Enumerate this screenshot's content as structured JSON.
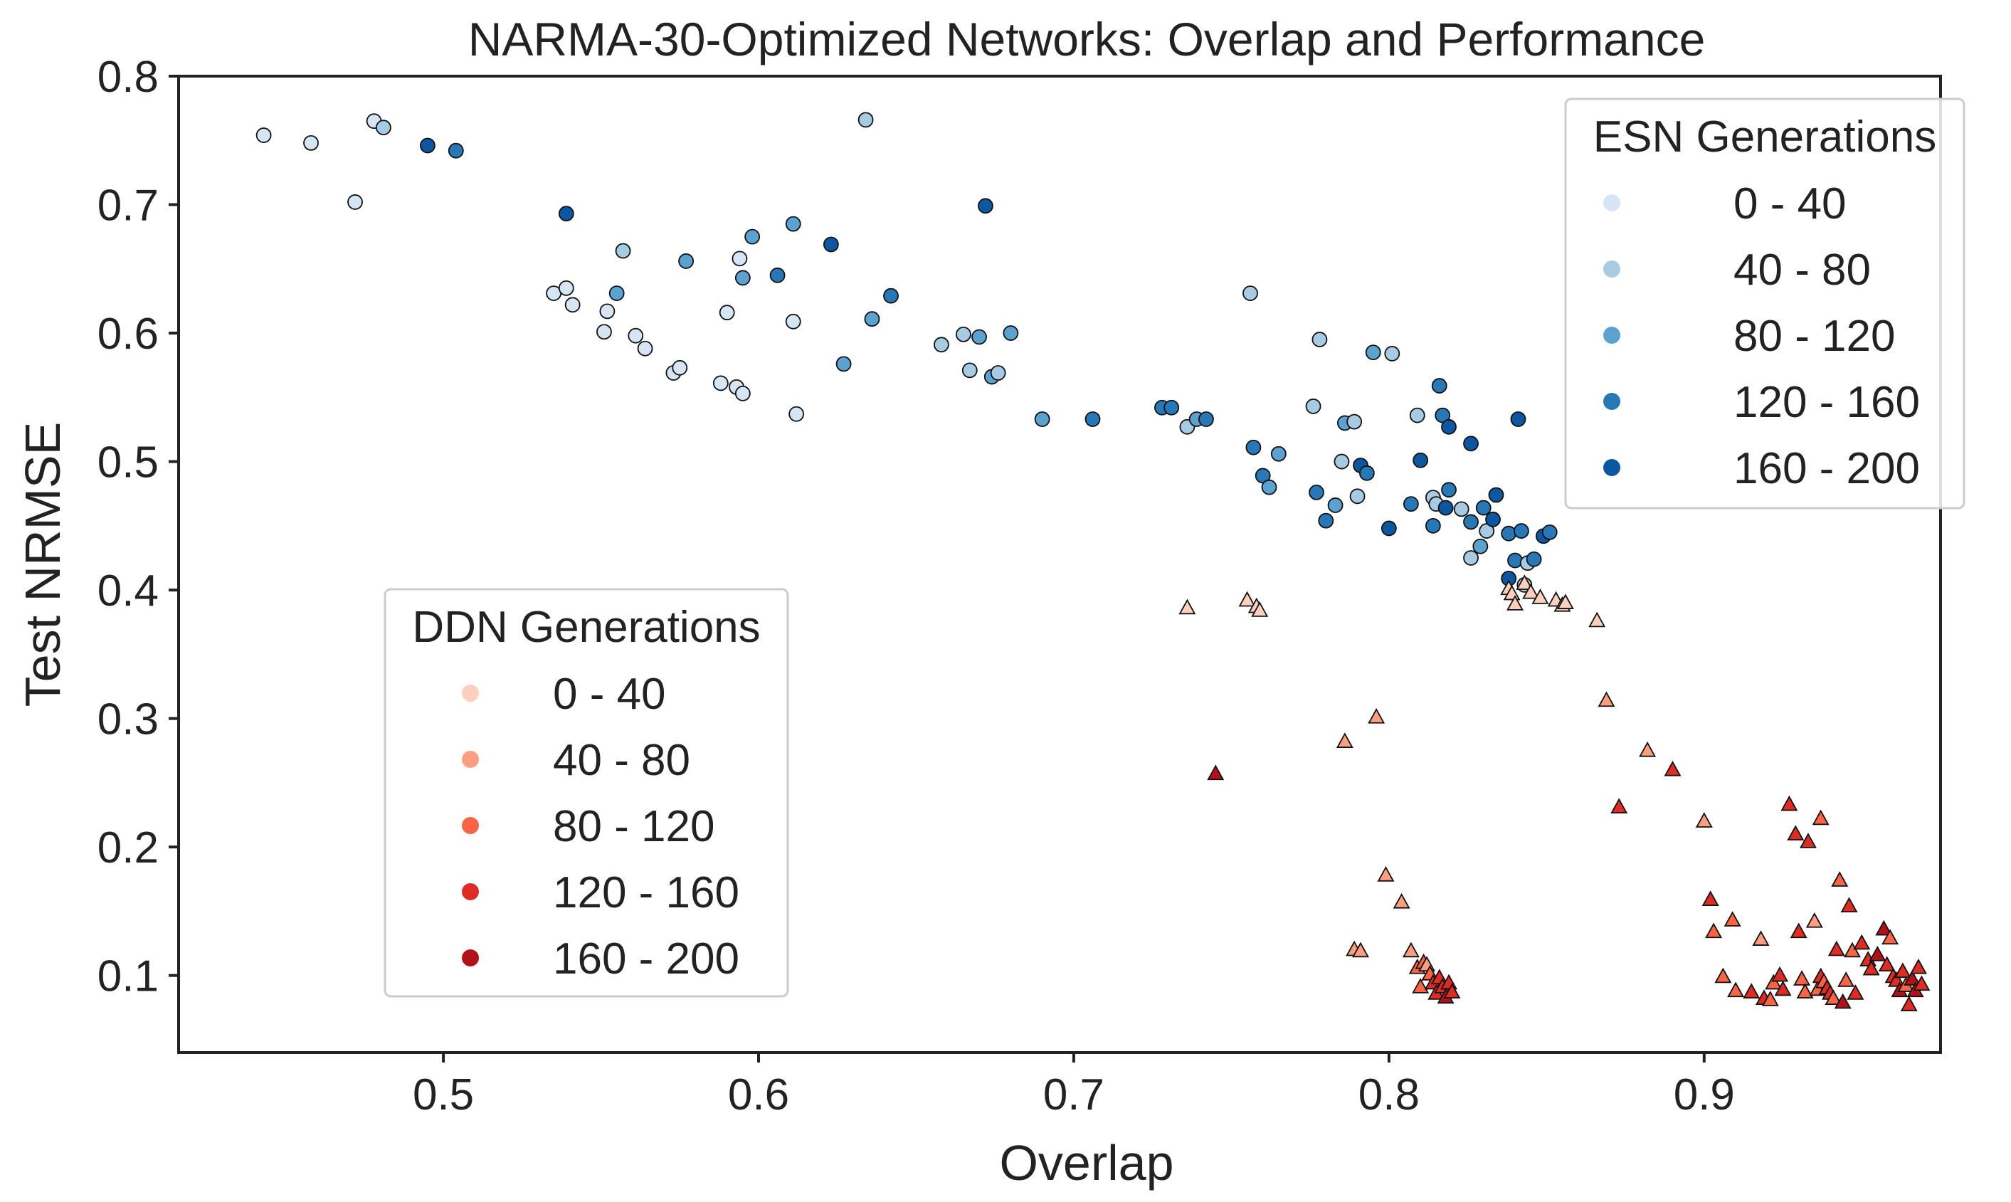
{
  "chart_data": {
    "type": "scatter",
    "title": "NARMA-30-Optimized Networks: Overlap and Performance",
    "xlabel": "Overlap",
    "ylabel": "Test NRMSE",
    "xlim": [
      0.416,
      0.975
    ],
    "ylim": [
      0.04,
      0.8
    ],
    "xticks": [
      0.5,
      0.6,
      0.7,
      0.8,
      0.9
    ],
    "xtick_labels": [
      "0.5",
      "0.6",
      "0.7",
      "0.8",
      "0.9"
    ],
    "yticks": [
      0.1,
      0.2,
      0.3,
      0.4,
      0.5,
      0.6,
      0.7,
      0.8
    ],
    "ytick_labels": [
      "0.1",
      "0.2",
      "0.3",
      "0.4",
      "0.5",
      "0.6",
      "0.7",
      "0.8"
    ],
    "grid": false,
    "legends": [
      {
        "title": "ESN Generations",
        "placement": "top-right",
        "marker": "circle",
        "labels": [
          "0 - 40",
          "40 - 80",
          "80 - 120",
          "120 - 160",
          "160 - 200"
        ],
        "colors": [
          "#d5e5f4",
          "#a6cbe3",
          "#5ba2d1",
          "#2878b8",
          "#0d57a0"
        ]
      },
      {
        "title": "DDN Generations",
        "placement": "lower-left",
        "marker": "triangle",
        "labels": [
          "0 - 40",
          "40 - 80",
          "80 - 120",
          "120 - 160",
          "160 - 200"
        ],
        "colors": [
          "#fdd0bd",
          "#fc9f80",
          "#f86446",
          "#dc2c24",
          "#b01217"
        ]
      }
    ],
    "series": [
      {
        "name": "ESN",
        "marker": "circle",
        "points": [
          [
            0.443,
            0.754,
            0
          ],
          [
            0.458,
            0.748,
            0
          ],
          [
            0.472,
            0.702,
            0
          ],
          [
            0.478,
            0.765,
            0
          ],
          [
            0.481,
            0.76,
            1
          ],
          [
            0.495,
            0.746,
            4
          ],
          [
            0.504,
            0.742,
            3
          ],
          [
            0.539,
            0.693,
            4
          ],
          [
            0.535,
            0.631,
            0
          ],
          [
            0.539,
            0.635,
            0
          ],
          [
            0.541,
            0.622,
            0
          ],
          [
            0.551,
            0.601,
            0
          ],
          [
            0.552,
            0.617,
            0
          ],
          [
            0.555,
            0.631,
            2
          ],
          [
            0.557,
            0.664,
            1
          ],
          [
            0.561,
            0.598,
            0
          ],
          [
            0.564,
            0.588,
            0
          ],
          [
            0.573,
            0.569,
            0
          ],
          [
            0.575,
            0.573,
            0
          ],
          [
            0.577,
            0.656,
            2
          ],
          [
            0.588,
            0.561,
            0
          ],
          [
            0.59,
            0.616,
            0
          ],
          [
            0.593,
            0.558,
            0
          ],
          [
            0.594,
            0.658,
            0
          ],
          [
            0.595,
            0.553,
            0
          ],
          [
            0.595,
            0.643,
            2
          ],
          [
            0.598,
            0.675,
            2
          ],
          [
            0.606,
            0.645,
            3
          ],
          [
            0.611,
            0.609,
            0
          ],
          [
            0.611,
            0.685,
            2
          ],
          [
            0.612,
            0.537,
            0
          ],
          [
            0.623,
            0.669,
            4
          ],
          [
            0.627,
            0.576,
            2
          ],
          [
            0.634,
            0.766,
            1
          ],
          [
            0.636,
            0.611,
            2
          ],
          [
            0.642,
            0.629,
            3
          ],
          [
            0.658,
            0.591,
            1
          ],
          [
            0.665,
            0.599,
            1
          ],
          [
            0.667,
            0.571,
            1
          ],
          [
            0.67,
            0.597,
            2
          ],
          [
            0.672,
            0.699,
            4
          ],
          [
            0.674,
            0.566,
            2
          ],
          [
            0.676,
            0.569,
            1
          ],
          [
            0.68,
            0.6,
            2
          ],
          [
            0.69,
            0.533,
            2
          ],
          [
            0.706,
            0.533,
            3
          ],
          [
            0.728,
            0.542,
            3
          ],
          [
            0.731,
            0.542,
            3
          ],
          [
            0.736,
            0.527,
            1
          ],
          [
            0.739,
            0.533,
            2
          ],
          [
            0.742,
            0.533,
            3
          ],
          [
            0.756,
            0.631,
            1
          ],
          [
            0.757,
            0.511,
            3
          ],
          [
            0.76,
            0.489,
            3
          ],
          [
            0.762,
            0.48,
            2
          ],
          [
            0.765,
            0.506,
            2
          ],
          [
            0.776,
            0.543,
            1
          ],
          [
            0.777,
            0.476,
            3
          ],
          [
            0.778,
            0.595,
            1
          ],
          [
            0.78,
            0.454,
            3
          ],
          [
            0.783,
            0.466,
            2
          ],
          [
            0.785,
            0.5,
            1
          ],
          [
            0.786,
            0.53,
            2
          ],
          [
            0.789,
            0.531,
            1
          ],
          [
            0.79,
            0.473,
            1
          ],
          [
            0.791,
            0.497,
            4
          ],
          [
            0.793,
            0.491,
            3
          ],
          [
            0.795,
            0.585,
            2
          ],
          [
            0.8,
            0.448,
            4
          ],
          [
            0.801,
            0.584,
            1
          ],
          [
            0.807,
            0.467,
            3
          ],
          [
            0.809,
            0.536,
            1
          ],
          [
            0.81,
            0.501,
            4
          ],
          [
            0.814,
            0.45,
            3
          ],
          [
            0.814,
            0.472,
            1
          ],
          [
            0.815,
            0.467,
            1
          ],
          [
            0.816,
            0.559,
            3
          ],
          [
            0.817,
            0.536,
            3
          ],
          [
            0.818,
            0.464,
            4
          ],
          [
            0.819,
            0.478,
            3
          ],
          [
            0.819,
            0.527,
            4
          ],
          [
            0.823,
            0.463,
            1
          ],
          [
            0.826,
            0.514,
            4
          ],
          [
            0.826,
            0.425,
            1
          ],
          [
            0.826,
            0.453,
            3
          ],
          [
            0.829,
            0.434,
            2
          ],
          [
            0.83,
            0.464,
            3
          ],
          [
            0.831,
            0.446,
            1
          ],
          [
            0.833,
            0.455,
            4
          ],
          [
            0.834,
            0.474,
            4
          ],
          [
            0.838,
            0.444,
            3
          ],
          [
            0.838,
            0.409,
            4
          ],
          [
            0.84,
            0.423,
            3
          ],
          [
            0.841,
            0.533,
            4
          ],
          [
            0.842,
            0.446,
            3
          ],
          [
            0.843,
            0.404,
            1
          ],
          [
            0.844,
            0.421,
            1
          ],
          [
            0.846,
            0.424,
            3
          ],
          [
            0.849,
            0.442,
            4
          ],
          [
            0.851,
            0.445,
            3
          ]
        ]
      },
      {
        "name": "DDN",
        "marker": "triangle",
        "points": [
          [
            0.736,
            0.386,
            0
          ],
          [
            0.745,
            0.257,
            4
          ],
          [
            0.755,
            0.392,
            0
          ],
          [
            0.758,
            0.387,
            0
          ],
          [
            0.759,
            0.384,
            0
          ],
          [
            0.786,
            0.282,
            1
          ],
          [
            0.789,
            0.12,
            1
          ],
          [
            0.791,
            0.119,
            1
          ],
          [
            0.796,
            0.301,
            1
          ],
          [
            0.799,
            0.178,
            1
          ],
          [
            0.804,
            0.157,
            1
          ],
          [
            0.807,
            0.119,
            1
          ],
          [
            0.809,
            0.106,
            2
          ],
          [
            0.81,
            0.091,
            2
          ],
          [
            0.811,
            0.11,
            2
          ],
          [
            0.812,
            0.108,
            1
          ],
          [
            0.813,
            0.101,
            2
          ],
          [
            0.814,
            0.094,
            3
          ],
          [
            0.815,
            0.086,
            3
          ],
          [
            0.816,
            0.098,
            3
          ],
          [
            0.817,
            0.091,
            3
          ],
          [
            0.818,
            0.083,
            4
          ],
          [
            0.819,
            0.094,
            3
          ],
          [
            0.82,
            0.087,
            3
          ],
          [
            0.838,
            0.401,
            0
          ],
          [
            0.839,
            0.397,
            0
          ],
          [
            0.84,
            0.389,
            0
          ],
          [
            0.843,
            0.405,
            0
          ],
          [
            0.845,
            0.398,
            0
          ],
          [
            0.848,
            0.394,
            0
          ],
          [
            0.853,
            0.392,
            0
          ],
          [
            0.855,
            0.388,
            0
          ],
          [
            0.856,
            0.39,
            0
          ],
          [
            0.866,
            0.376,
            0
          ],
          [
            0.869,
            0.314,
            1
          ],
          [
            0.873,
            0.231,
            3
          ],
          [
            0.882,
            0.275,
            1
          ],
          [
            0.89,
            0.26,
            3
          ],
          [
            0.9,
            0.22,
            1
          ],
          [
            0.902,
            0.159,
            3
          ],
          [
            0.903,
            0.134,
            2
          ],
          [
            0.906,
            0.099,
            2
          ],
          [
            0.909,
            0.143,
            2
          ],
          [
            0.91,
            0.088,
            2
          ],
          [
            0.915,
            0.087,
            3
          ],
          [
            0.918,
            0.128,
            1
          ],
          [
            0.919,
            0.082,
            3
          ],
          [
            0.921,
            0.081,
            2
          ],
          [
            0.922,
            0.094,
            2
          ],
          [
            0.924,
            0.1,
            3
          ],
          [
            0.925,
            0.089,
            3
          ],
          [
            0.927,
            0.233,
            3
          ],
          [
            0.929,
            0.21,
            3
          ],
          [
            0.93,
            0.134,
            3
          ],
          [
            0.931,
            0.097,
            2
          ],
          [
            0.932,
            0.087,
            2
          ],
          [
            0.933,
            0.204,
            3
          ],
          [
            0.935,
            0.142,
            1
          ],
          [
            0.936,
            0.089,
            2
          ],
          [
            0.937,
            0.099,
            3
          ],
          [
            0.937,
            0.222,
            2
          ],
          [
            0.938,
            0.095,
            2
          ],
          [
            0.939,
            0.09,
            3
          ],
          [
            0.94,
            0.086,
            3
          ],
          [
            0.941,
            0.082,
            2
          ],
          [
            0.942,
            0.12,
            3
          ],
          [
            0.943,
            0.174,
            2
          ],
          [
            0.944,
            0.079,
            4
          ],
          [
            0.945,
            0.096,
            2
          ],
          [
            0.946,
            0.154,
            3
          ],
          [
            0.947,
            0.119,
            2
          ],
          [
            0.948,
            0.086,
            3
          ],
          [
            0.95,
            0.125,
            3
          ],
          [
            0.952,
            0.112,
            3
          ],
          [
            0.953,
            0.105,
            3
          ],
          [
            0.955,
            0.116,
            4
          ],
          [
            0.957,
            0.136,
            4
          ],
          [
            0.958,
            0.108,
            3
          ],
          [
            0.959,
            0.129,
            2
          ],
          [
            0.96,
            0.099,
            3
          ],
          [
            0.961,
            0.096,
            3
          ],
          [
            0.962,
            0.088,
            4
          ],
          [
            0.963,
            0.103,
            3
          ],
          [
            0.964,
            0.092,
            2
          ],
          [
            0.965,
            0.077,
            3
          ],
          [
            0.966,
            0.097,
            4
          ],
          [
            0.967,
            0.088,
            4
          ],
          [
            0.968,
            0.106,
            3
          ],
          [
            0.969,
            0.093,
            3
          ]
        ]
      }
    ]
  }
}
